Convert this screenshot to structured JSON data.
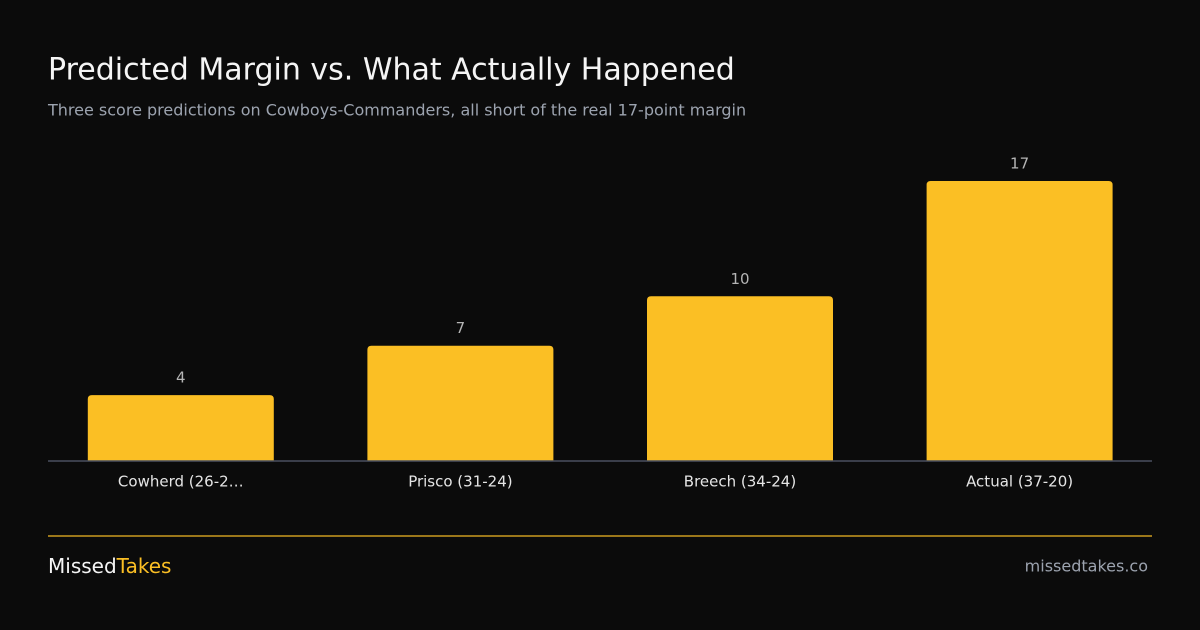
{
  "chart_data": {
    "type": "bar",
    "title": "Predicted Margin vs. What Actually Happened",
    "subtitle": "Three score predictions on Cowboys-Commanders, all short of the real 17-point margin",
    "categories": [
      "Cowherd (26-2…",
      "Prisco (31-24)",
      "Breech (34-24)",
      "Actual (37-20)"
    ],
    "values": [
      4,
      7,
      10,
      17
    ],
    "color": "#fbbf24"
  },
  "footer": {
    "brand_first": "Missed",
    "brand_second": "Takes",
    "url": "missedtakes.co"
  }
}
